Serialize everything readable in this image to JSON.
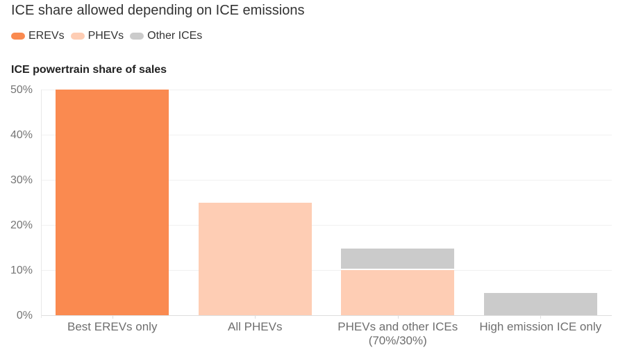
{
  "title": "ICE share allowed depending on ICE emissions",
  "axis_title": "ICE powertrain share of sales",
  "legend": [
    {
      "label": "EREVs",
      "color": "#fa8a50"
    },
    {
      "label": "PHEVs",
      "color": "#fecdb4"
    },
    {
      "label": "Other ICEs",
      "color": "#cbcbcb"
    }
  ],
  "colors": {
    "erevs": "#fa8a50",
    "phevs": "#fecdb4",
    "other_ices": "#cbcbcb",
    "background": "#ffffff",
    "gridline": "#f0f0f0",
    "text_dark": "#333333",
    "text_axis": "#757575"
  },
  "chart_data": {
    "type": "bar",
    "stacked": true,
    "title": "ICE share allowed depending on ICE emissions",
    "xlabel": "",
    "ylabel": "ICE powertrain share of sales",
    "categories": [
      "Best EREVs only",
      "All PHEVs",
      "PHEVs and other ICEs\n(70%/30%)",
      "High emission ICE only"
    ],
    "series": [
      {
        "name": "EREVs",
        "color": "#fa8a50",
        "values": [
          50,
          0,
          0,
          0
        ]
      },
      {
        "name": "PHEVs",
        "color": "#fecdb4",
        "values": [
          0,
          25,
          10,
          0
        ]
      },
      {
        "name": "Other ICEs",
        "color": "#cbcbcb",
        "values": [
          0,
          0,
          4.5,
          5
        ]
      }
    ],
    "ylim": [
      0,
      50
    ],
    "yticks": [
      {
        "value": 0,
        "label": "0%"
      },
      {
        "value": 10,
        "label": "10%"
      },
      {
        "value": 20,
        "label": "20%"
      },
      {
        "value": 30,
        "label": "30%"
      },
      {
        "value": 40,
        "label": "40%"
      },
      {
        "value": 50,
        "label": "50%"
      }
    ],
    "grid": true,
    "legend_position": "top"
  }
}
